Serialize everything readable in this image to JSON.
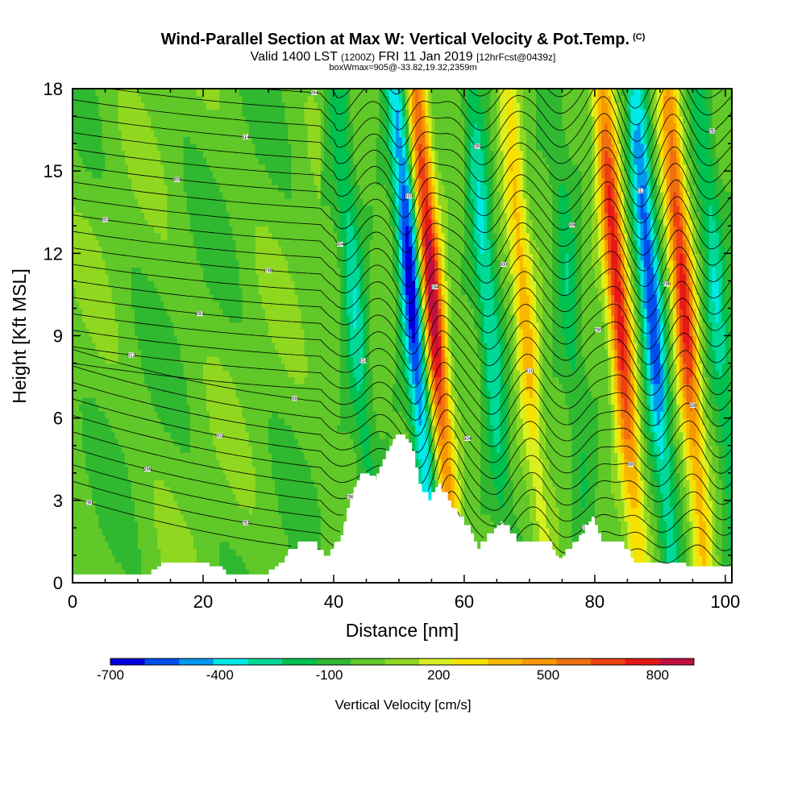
{
  "header": {
    "title_main": "Wind-Parallel Section at Max W: Vertical Velocity & Pot.Temp.",
    "title_copyright": "(C)",
    "valid_prefix": "Valid 1400 LST",
    "valid_utc": "(1200Z)",
    "valid_date": "FRI 11 Jan 2019",
    "forecast_info": "[12hrFcst@0439z]",
    "box_info": "boxWmax=905@-33.82,19.32,2359m"
  },
  "chart_data": {
    "type": "heatmap",
    "title": "Wind-Parallel Section at Max W: Vertical Velocity & Pot.Temp.",
    "xlabel": "Distance [nm]",
    "ylabel": "Height [Kft MSL]",
    "xlim": [
      0,
      101
    ],
    "ylim": [
      0,
      18
    ],
    "xticks": [
      0,
      20,
      40,
      60,
      80,
      100
    ],
    "yticks": [
      0,
      3,
      6,
      9,
      12,
      15,
      18
    ],
    "colorbar": {
      "title": "Vertical Velocity [cm/s]",
      "tick_labels": [
        "-700",
        "-400",
        "-100",
        "200",
        "500",
        "800"
      ],
      "tick_values": [
        -700,
        -400,
        -100,
        200,
        500,
        800
      ],
      "range": [
        -700,
        900
      ],
      "colors": [
        "#0000dd",
        "#0050f0",
        "#0098f0",
        "#00e8e8",
        "#00d898",
        "#00c050",
        "#30b830",
        "#60c828",
        "#90d820",
        "#d8f020",
        "#f8e000",
        "#f8b800",
        "#f89800",
        "#f07010",
        "#f04010",
        "#e81818",
        "#c01040"
      ]
    },
    "vertical_velocity_bands": [
      {
        "distance_nm": 43.5,
        "peak_cm_s": -300,
        "kind": "downdraft"
      },
      {
        "distance_nm": 52.5,
        "peak_cm_s": -700,
        "kind": "downdraft"
      },
      {
        "distance_nm": 55.5,
        "peak_cm_s": 905,
        "kind": "updraft"
      },
      {
        "distance_nm": 64.0,
        "peak_cm_s": -350,
        "kind": "downdraft"
      },
      {
        "distance_nm": 69.5,
        "peak_cm_s": 400,
        "kind": "updraft"
      },
      {
        "distance_nm": 76.5,
        "peak_cm_s": -200,
        "kind": "downdraft"
      },
      {
        "distance_nm": 84.0,
        "peak_cm_s": 800,
        "kind": "updraft"
      },
      {
        "distance_nm": 89.0,
        "peak_cm_s": -600,
        "kind": "downdraft"
      },
      {
        "distance_nm": 94.0,
        "peak_cm_s": 750,
        "kind": "updraft"
      },
      {
        "distance_nm": 99.0,
        "peak_cm_s": -300,
        "kind": "downdraft"
      }
    ],
    "terrain_profile": [
      [
        0,
        0.35
      ],
      [
        12,
        0.35
      ],
      [
        14,
        0.7
      ],
      [
        20,
        0.7
      ],
      [
        24,
        0.35
      ],
      [
        30,
        0.35
      ],
      [
        32,
        0.7
      ],
      [
        33.5,
        1.3
      ],
      [
        36.5,
        1.5
      ],
      [
        38.5,
        0.9
      ],
      [
        41,
        1.6
      ],
      [
        42.5,
        3.1
      ],
      [
        44.5,
        4.0
      ],
      [
        46.5,
        3.7
      ],
      [
        47.5,
        4.5
      ],
      [
        49.5,
        5.3
      ],
      [
        51.5,
        5.2
      ],
      [
        53,
        3.6
      ],
      [
        54.5,
        3.0
      ],
      [
        56,
        3.6
      ],
      [
        58,
        2.8
      ],
      [
        60.5,
        2.0
      ],
      [
        62,
        1.2
      ],
      [
        64,
        1.8
      ],
      [
        66,
        2.2
      ],
      [
        68,
        1.5
      ],
      [
        72.5,
        1.6
      ],
      [
        74.5,
        0.8
      ],
      [
        77.5,
        1.6
      ],
      [
        79.5,
        2.3
      ],
      [
        81.5,
        1.4
      ],
      [
        84,
        1.5
      ],
      [
        86,
        0.7
      ],
      [
        92,
        0.7
      ],
      [
        95,
        0.6
      ],
      [
        101,
        0.6
      ]
    ],
    "theta_contour_labels": [
      "290",
      "292",
      "294",
      "296",
      "298",
      "300",
      "302",
      "304",
      "306",
      "308",
      "310",
      "312",
      "314"
    ]
  }
}
